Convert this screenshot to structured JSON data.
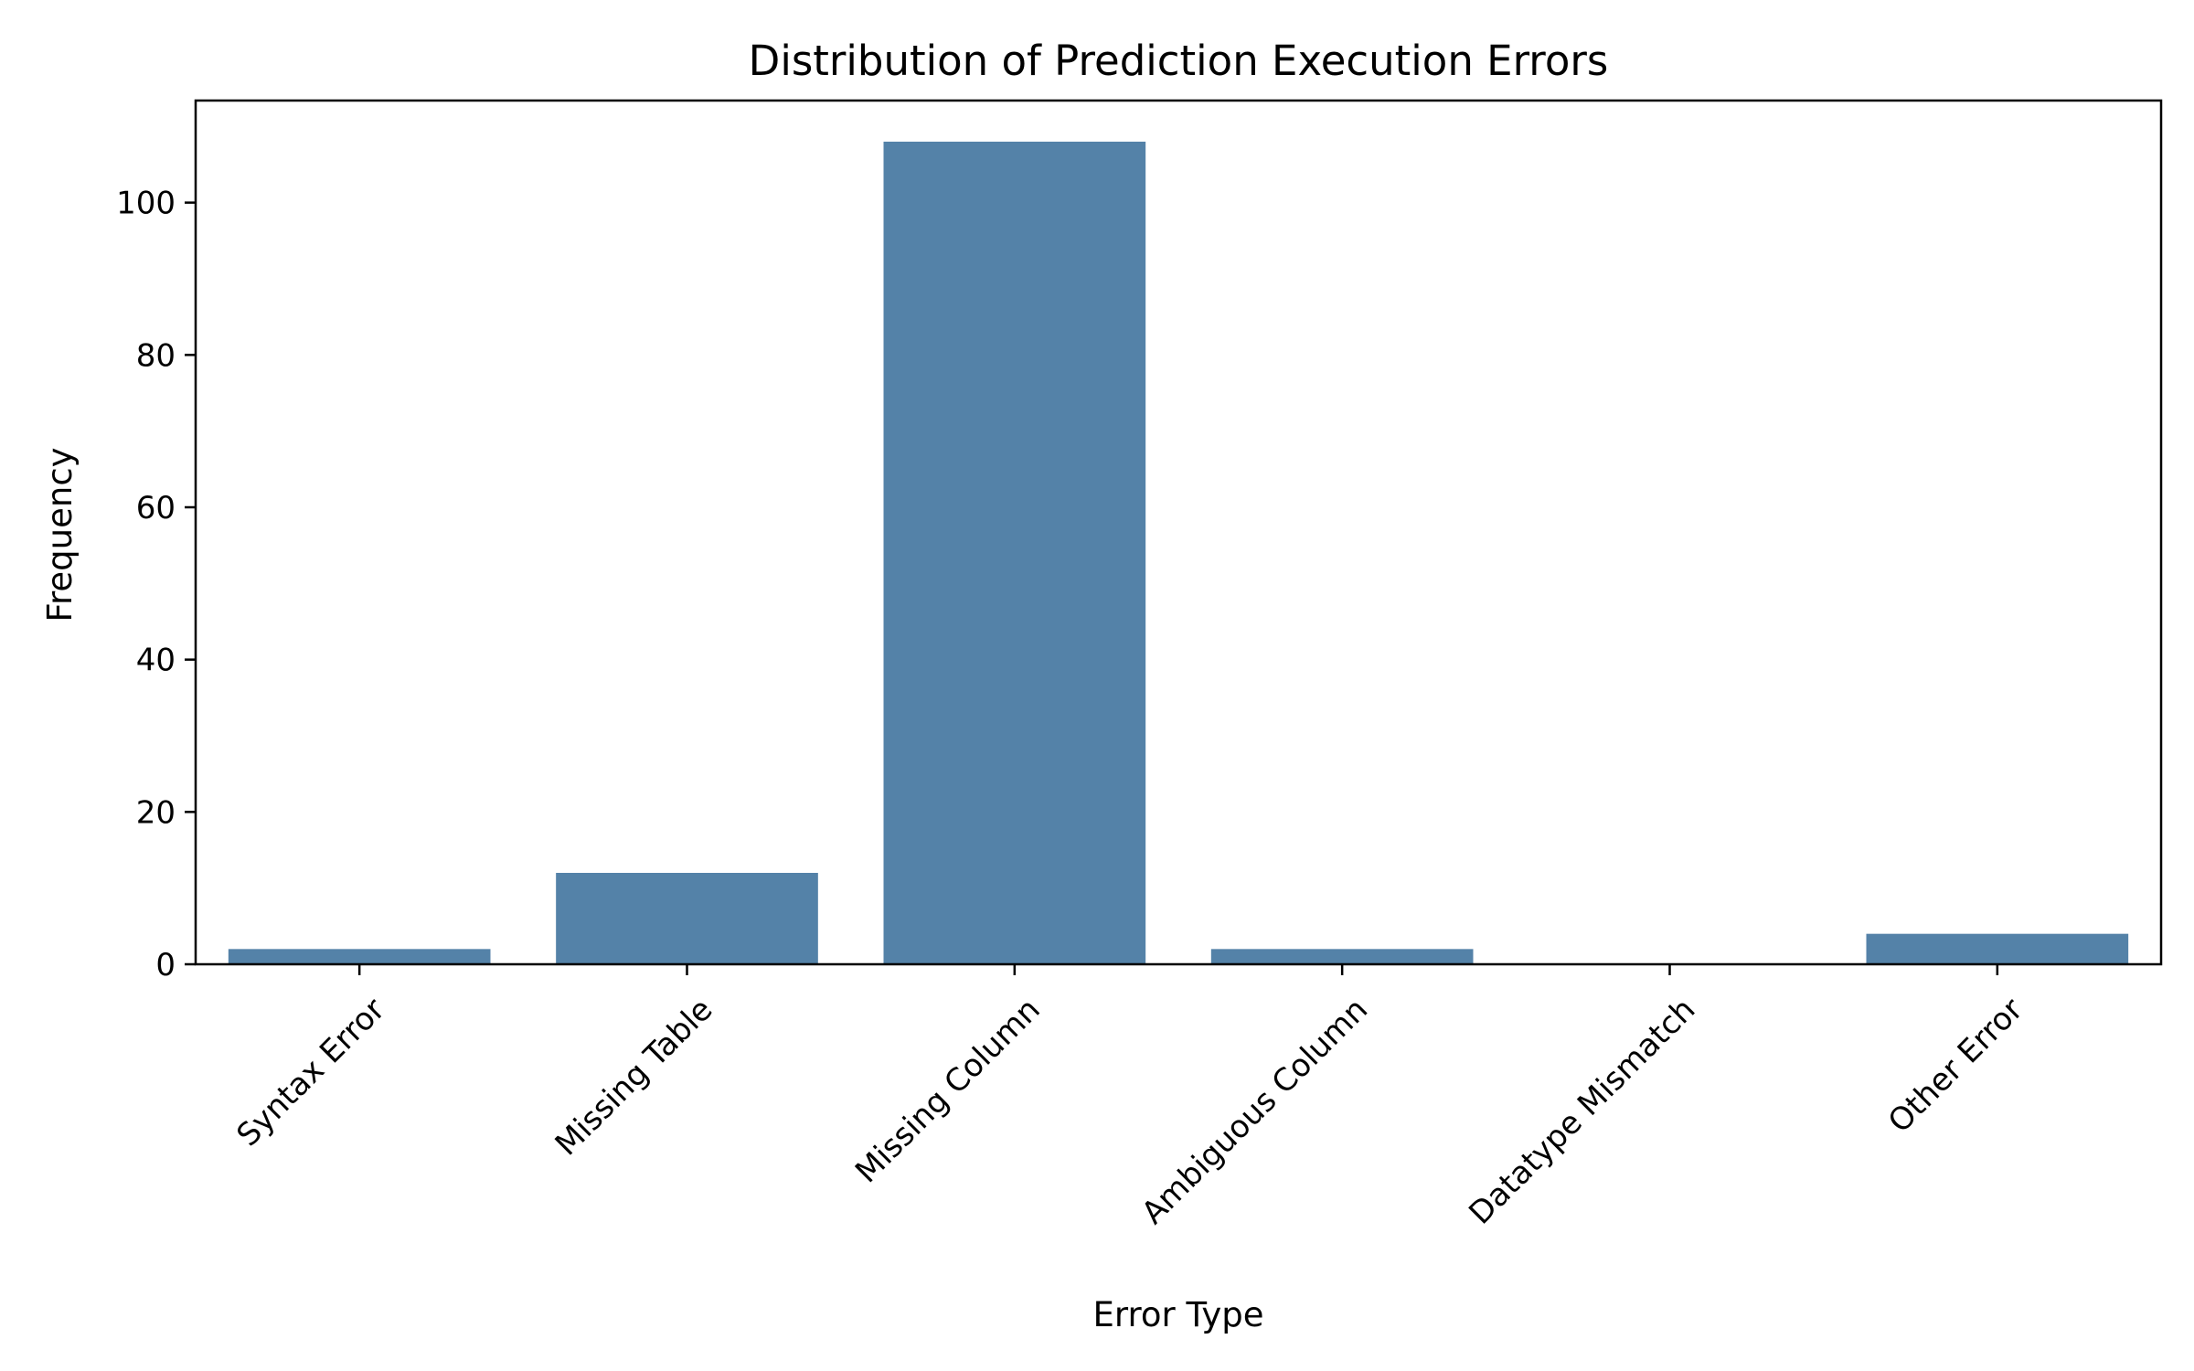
{
  "chart_data": {
    "type": "bar",
    "title": "Distribution of Prediction Execution Errors",
    "xlabel": "Error Type",
    "ylabel": "Frequency",
    "categories": [
      "Syntax Error",
      "Missing Table",
      "Missing Column",
      "Ambiguous Column",
      "Datatype Mismatch",
      "Other Error"
    ],
    "values": [
      2,
      12,
      108,
      2,
      0,
      4
    ],
    "ylim": [
      0,
      113.4
    ],
    "yticks": [
      "0",
      "20",
      "40",
      "60",
      "80",
      "100"
    ],
    "bar_color": "#5482a8",
    "grid": false,
    "legend": "none"
  }
}
